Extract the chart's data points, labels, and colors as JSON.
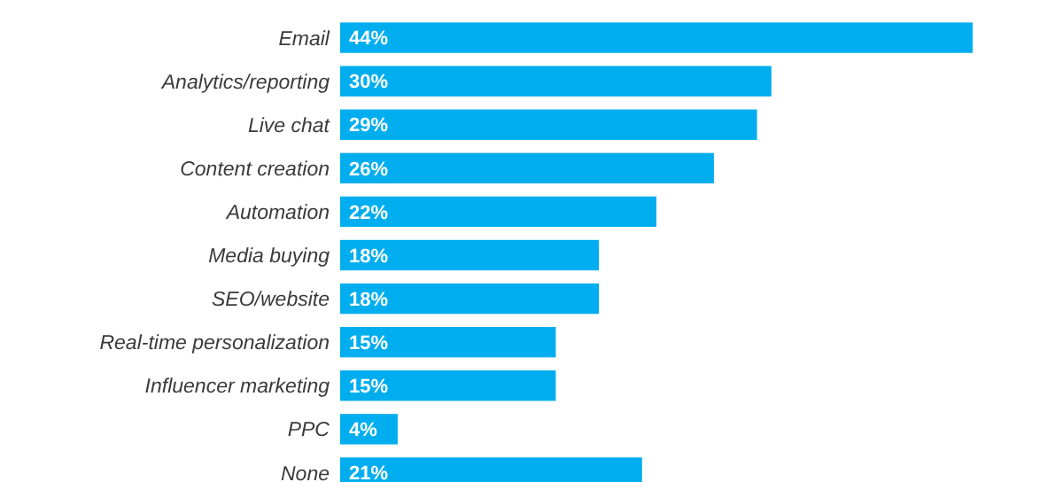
{
  "chart_data": {
    "type": "bar",
    "orientation": "horizontal",
    "categories": [
      "Email",
      "Analytics/reporting",
      "Live chat",
      "Content creation",
      "Automation",
      "Media buying",
      "SEO/website",
      "Real-time personalization",
      "Influencer marketing",
      "PPC",
      "None"
    ],
    "values": [
      44,
      30,
      29,
      26,
      22,
      18,
      18,
      15,
      15,
      4,
      21
    ],
    "value_labels": [
      "44%",
      "30%",
      "29%",
      "26%",
      "22%",
      "18%",
      "18%",
      "15%",
      "15%",
      "4%",
      "21%"
    ],
    "color": "#00aeef"
  }
}
